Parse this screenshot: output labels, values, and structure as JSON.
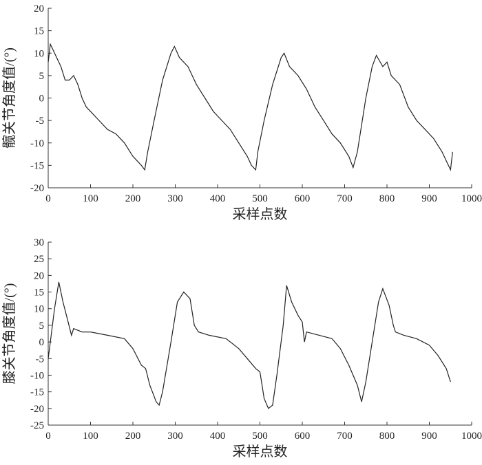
{
  "chart_data": [
    {
      "type": "line",
      "y_label": "髋关节角度值/(°)",
      "x_label": "采样点数",
      "xlim": [
        0,
        1000
      ],
      "xticks": [
        0,
        100,
        200,
        300,
        400,
        500,
        600,
        700,
        800,
        900,
        1000
      ],
      "ylim": [
        -20,
        20
      ],
      "yticks": [
        -20,
        -15,
        -10,
        -5,
        0,
        5,
        10,
        15,
        20
      ],
      "series": [
        {
          "color": "#222222",
          "x": [
            0,
            5,
            10,
            20,
            30,
            40,
            50,
            60,
            70,
            80,
            90,
            100,
            120,
            140,
            160,
            180,
            200,
            210,
            220,
            228,
            235,
            250,
            270,
            290,
            298,
            310,
            330,
            350,
            370,
            390,
            410,
            430,
            450,
            470,
            480,
            490,
            495,
            510,
            530,
            550,
            557,
            570,
            590,
            610,
            630,
            650,
            670,
            690,
            710,
            720,
            730,
            750,
            765,
            775,
            790,
            800,
            810,
            830,
            850,
            870,
            890,
            910,
            930,
            945,
            950,
            955
          ],
          "values": [
            8,
            12,
            11,
            9,
            7,
            4,
            4,
            5,
            3,
            0,
            -2,
            -3,
            -5,
            -7,
            -8,
            -10,
            -13,
            -14,
            -15,
            -16,
            -12,
            -5,
            4,
            10,
            11.5,
            9,
            7,
            3,
            0,
            -3,
            -5,
            -7,
            -10,
            -13,
            -15,
            -16,
            -12,
            -5,
            3,
            9,
            10,
            7,
            5,
            2,
            -2,
            -5,
            -8,
            -10,
            -13,
            -15.5,
            -12,
            0,
            7,
            9.5,
            7,
            8,
            5,
            3,
            -2,
            -5,
            -7,
            -9,
            -12,
            -15,
            -16,
            -12
          ]
        }
      ]
    },
    {
      "type": "line",
      "y_label": "膝关节角度值/(°)",
      "x_label": "采样点数",
      "xlim": [
        0,
        1000
      ],
      "xticks": [
        0,
        100,
        200,
        300,
        400,
        500,
        600,
        700,
        800,
        900,
        1000
      ],
      "ylim": [
        -25,
        30
      ],
      "yticks": [
        -25,
        -20,
        -15,
        -10,
        -5,
        0,
        5,
        10,
        15,
        20,
        25,
        30
      ],
      "series": [
        {
          "color": "#222222",
          "x": [
            0,
            5,
            15,
            25,
            35,
            45,
            55,
            60,
            80,
            100,
            140,
            180,
            200,
            220,
            230,
            240,
            255,
            262,
            270,
            290,
            305,
            320,
            335,
            345,
            355,
            380,
            420,
            450,
            470,
            490,
            500,
            510,
            520,
            530,
            540,
            555,
            563,
            575,
            590,
            600,
            605,
            610,
            640,
            670,
            690,
            710,
            730,
            740,
            750,
            765,
            780,
            790,
            805,
            815,
            820,
            840,
            870,
            900,
            920,
            940,
            950
          ],
          "values": [
            -5,
            0,
            10,
            18,
            12,
            7,
            2,
            4,
            3,
            3,
            2,
            1,
            -2,
            -7,
            -8,
            -13,
            -18,
            -19,
            -15,
            0,
            12,
            15,
            13,
            5,
            3,
            2,
            1,
            -2,
            -5,
            -8,
            -9,
            -17,
            -20,
            -19,
            -10,
            5,
            17,
            12,
            8,
            6,
            0,
            3,
            2,
            1,
            -2,
            -7,
            -13,
            -18,
            -12,
            0,
            12,
            16,
            11,
            5,
            3,
            2,
            1,
            -1,
            -4,
            -8,
            -12
          ]
        }
      ]
    }
  ]
}
